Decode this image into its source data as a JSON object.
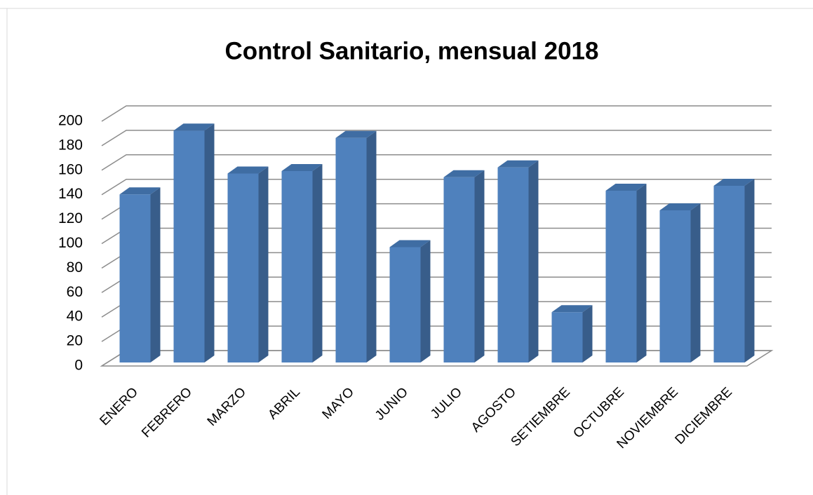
{
  "chart_data": {
    "type": "bar",
    "title": "Control Sanitario, mensual 2018",
    "categories": [
      "ENERO",
      "FEBRERO",
      "MARZO",
      "ABRIL",
      "MAYO",
      "JUNIO",
      "JULIO",
      "AGOSTO",
      "SETIEMBRE",
      "OCTUBRE",
      "NOVIEMBRE",
      "DICIEMBRE"
    ],
    "values": [
      137,
      189,
      154,
      156,
      183,
      94,
      151,
      159,
      41,
      140,
      124,
      144
    ],
    "color": "#4f81bd",
    "ylim": [
      0,
      200
    ],
    "yticks": [
      0,
      20,
      40,
      60,
      80,
      100,
      120,
      140,
      160,
      180,
      200
    ],
    "grid": true
  }
}
